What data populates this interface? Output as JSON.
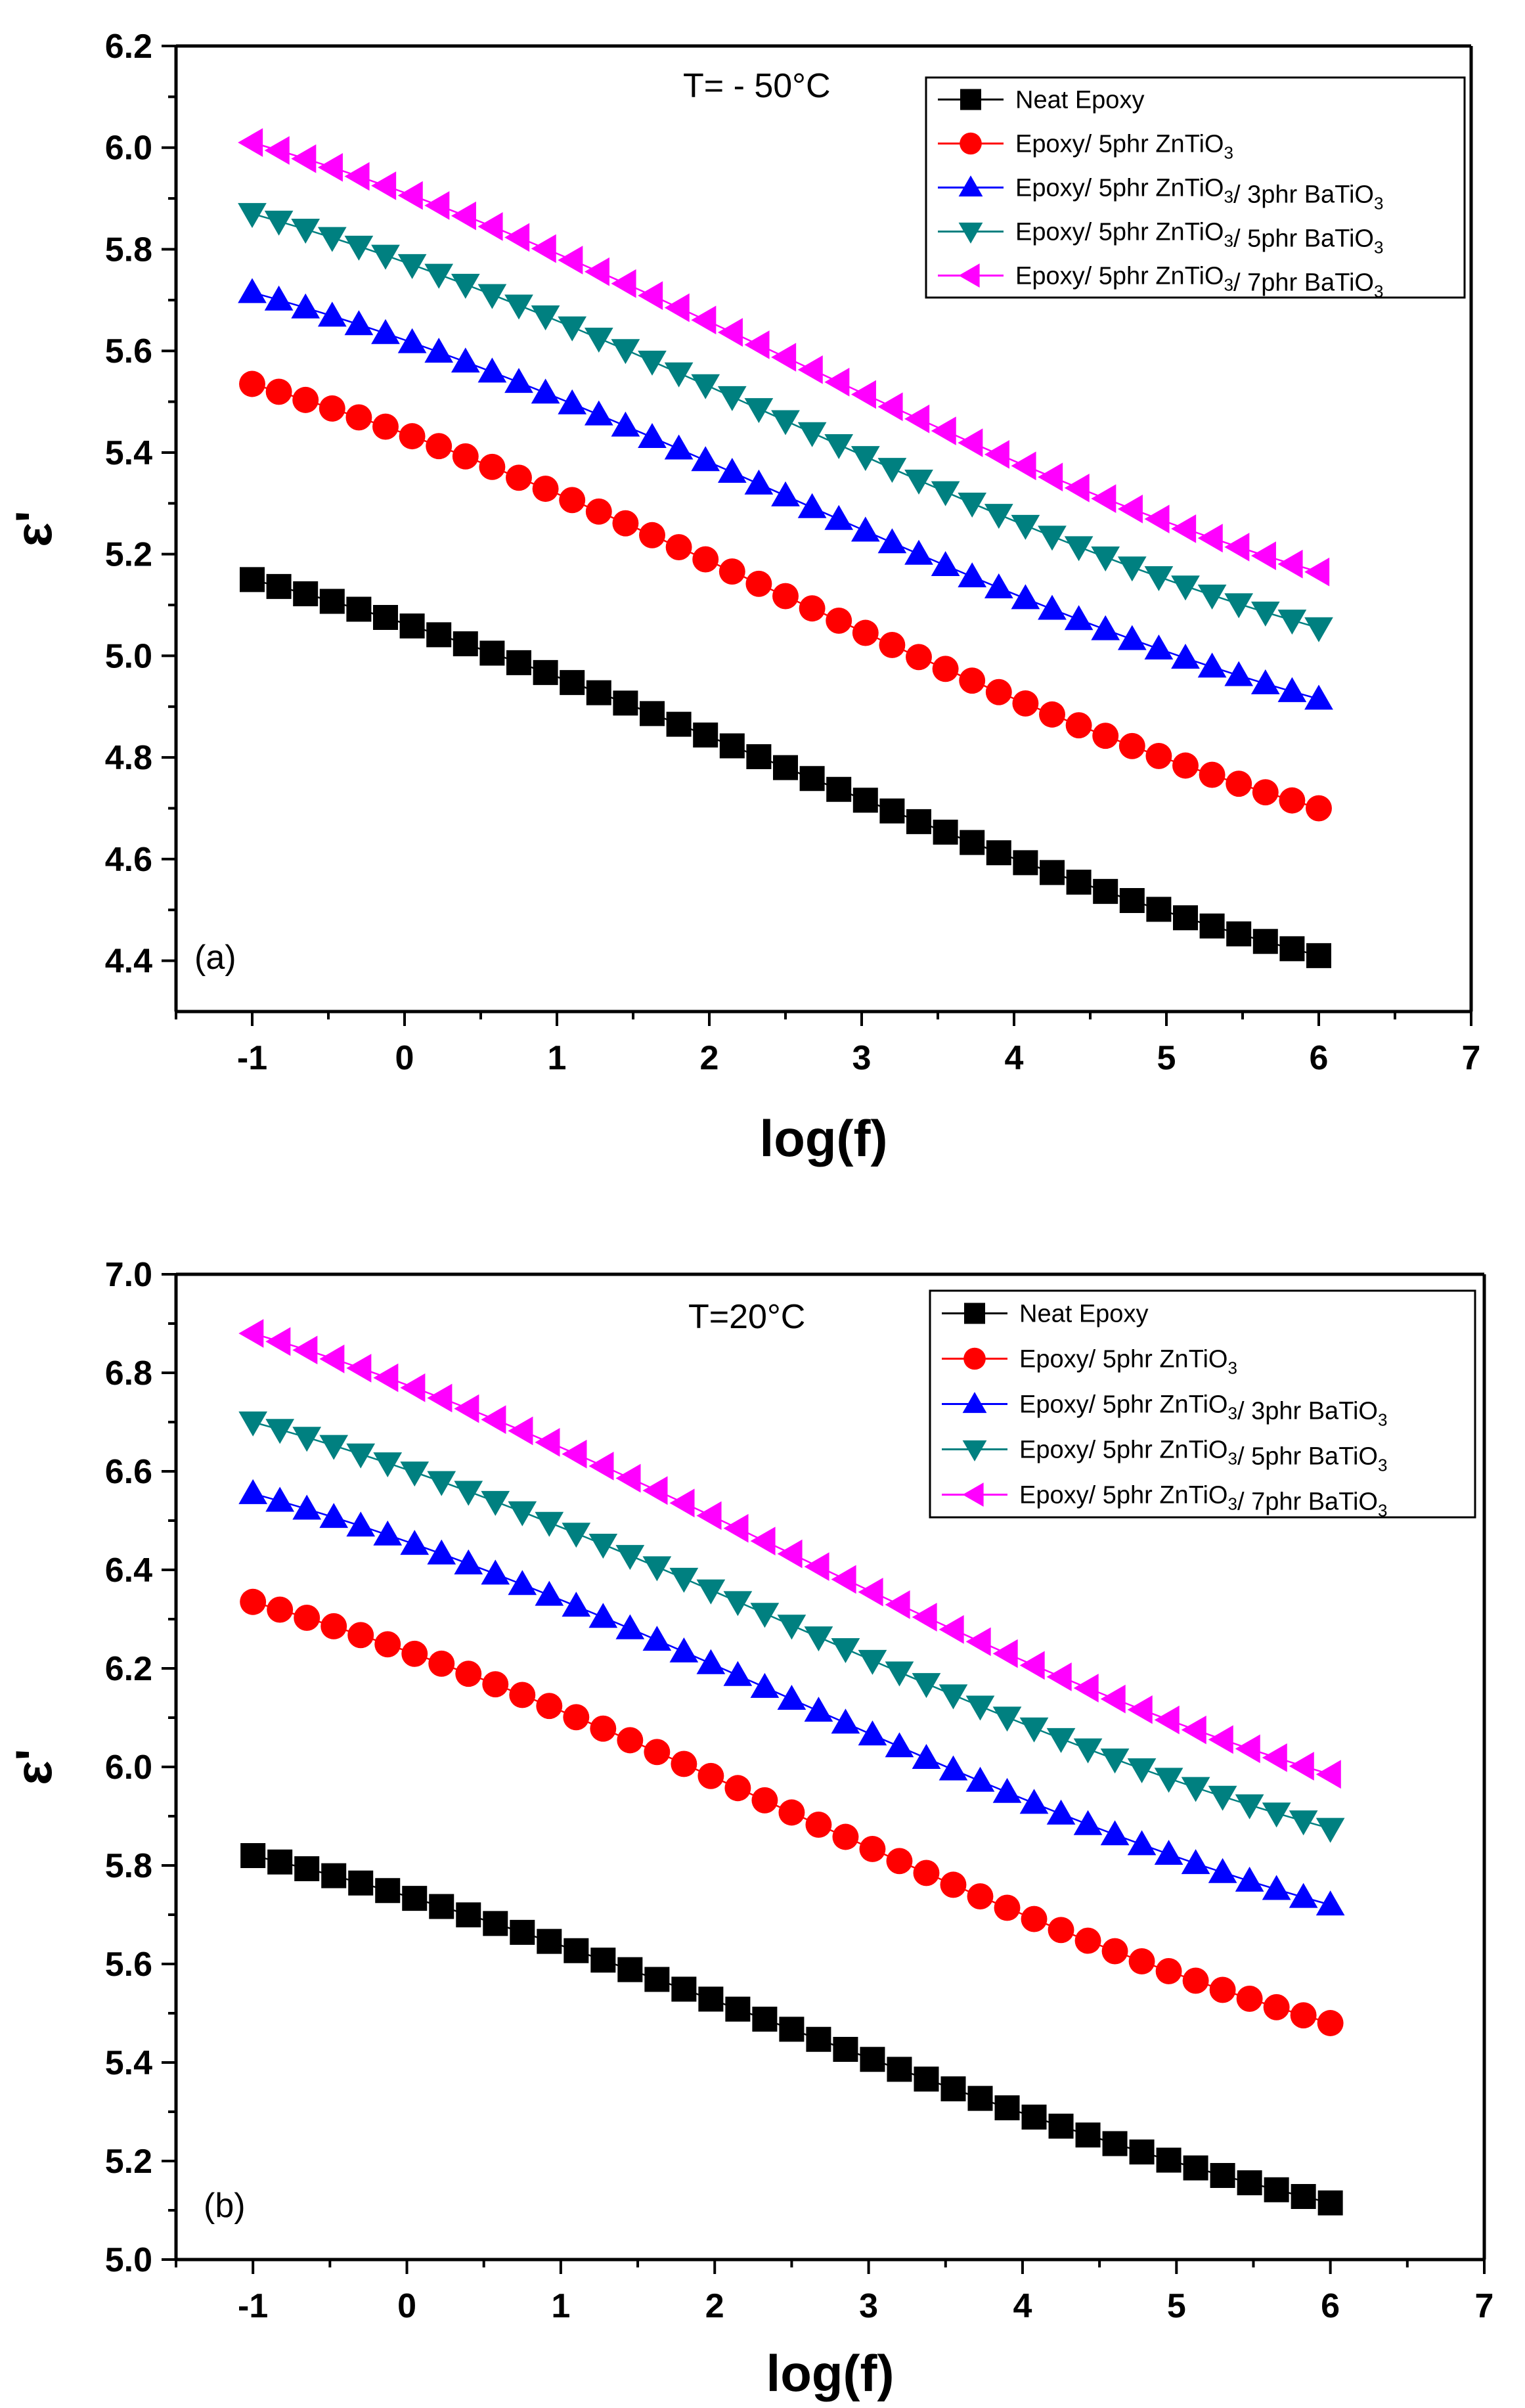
{
  "chart_data": [
    {
      "type": "scatter",
      "panel_label": "(a)",
      "annotation": "T= - 50°C",
      "xlabel": "log(f)",
      "ylabel": "ε'",
      "xlim": [
        -1.5,
        7
      ],
      "ylim": [
        4.3,
        6.2
      ],
      "xticks": [
        -1,
        0,
        1,
        2,
        3,
        4,
        5,
        6,
        7
      ],
      "yticks": [
        4.4,
        4.6,
        4.8,
        5.0,
        5.2,
        5.4,
        5.6,
        5.8,
        6.0,
        6.2
      ],
      "legend_position": "top-right",
      "series": [
        {
          "name": "Neat Epoxy",
          "color": "#000000",
          "marker": "square",
          "start": 5.15,
          "end": 4.41
        },
        {
          "name": "Epoxy/ 5phr ZnTiO3",
          "color": "#ff0000",
          "marker": "circle",
          "start": 5.535,
          "end": 4.7
        },
        {
          "name": "Epoxy/ 5phr ZnTiO3/ 3phr BaTiO3",
          "color": "#0000ff",
          "marker": "triangle-up",
          "start": 5.715,
          "end": 4.915
        },
        {
          "name": "Epoxy/ 5phr ZnTiO3/ 5phr BaTiO3",
          "color": "#008080",
          "marker": "triangle-down",
          "start": 5.87,
          "end": 5.055
        },
        {
          "name": "Epoxy/ 5phr ZnTiO3/ 7phr BaTiO3",
          "color": "#ff00ff",
          "marker": "triangle-left",
          "start": 6.01,
          "end": 5.165
        }
      ]
    },
    {
      "type": "scatter",
      "panel_label": "(b)",
      "annotation": "T=20°C",
      "xlabel": "log(f)",
      "ylabel": "ε'",
      "xlim": [
        -1.5,
        7
      ],
      "ylim": [
        5.0,
        7.0
      ],
      "xticks": [
        -1,
        0,
        1,
        2,
        3,
        4,
        5,
        6,
        7
      ],
      "yticks": [
        5.0,
        5.2,
        5.4,
        5.6,
        5.8,
        6.0,
        6.2,
        6.4,
        6.6,
        6.8,
        7.0
      ],
      "legend_position": "top-right",
      "series": [
        {
          "name": "Neat Epoxy",
          "color": "#000000",
          "marker": "square",
          "start": 5.82,
          "end": 5.115
        },
        {
          "name": "Epoxy/ 5phr ZnTiO3",
          "color": "#ff0000",
          "marker": "circle",
          "start": 6.335,
          "end": 5.48
        },
        {
          "name": "Epoxy/ 5phr ZnTiO3/ 3phr BaTiO3",
          "color": "#0000ff",
          "marker": "triangle-up",
          "start": 6.555,
          "end": 5.72
        },
        {
          "name": "Epoxy/ 5phr ZnTiO3/ 5phr BaTiO3",
          "color": "#008080",
          "marker": "triangle-down",
          "start": 6.7,
          "end": 5.875
        },
        {
          "name": "Epoxy/ 5phr ZnTiO3/ 7phr BaTiO3",
          "color": "#ff00ff",
          "marker": "triangle-left",
          "start": 6.88,
          "end": 5.985
        }
      ]
    }
  ]
}
